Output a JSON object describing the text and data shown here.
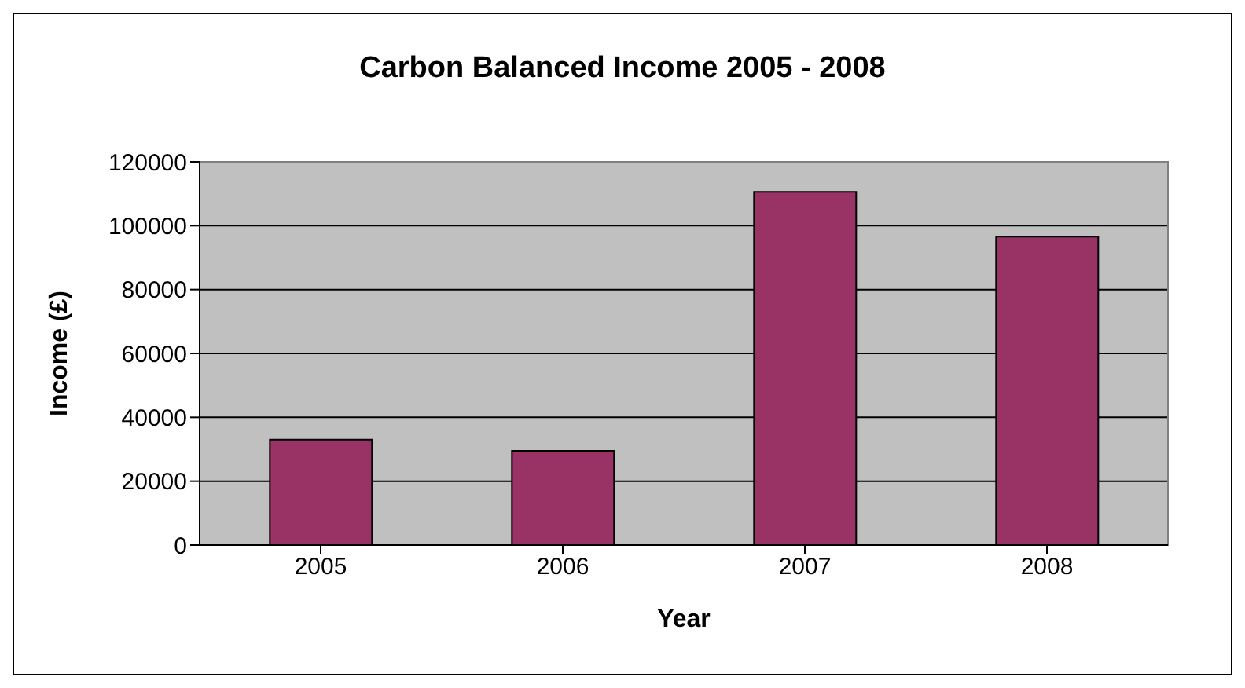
{
  "chart_data": {
    "type": "bar",
    "title": "Carbon Balanced Income 2005 - 2008",
    "xlabel": "Year",
    "ylabel": "Income (£)",
    "categories": [
      "2005",
      "2006",
      "2007",
      "2008"
    ],
    "values": [
      33000,
      29500,
      110600,
      96600
    ],
    "color": "#993366",
    "ylim": [
      0,
      120000
    ],
    "yticks": [
      0,
      20000,
      40000,
      60000,
      80000,
      100000,
      120000
    ],
    "grid": "y"
  }
}
